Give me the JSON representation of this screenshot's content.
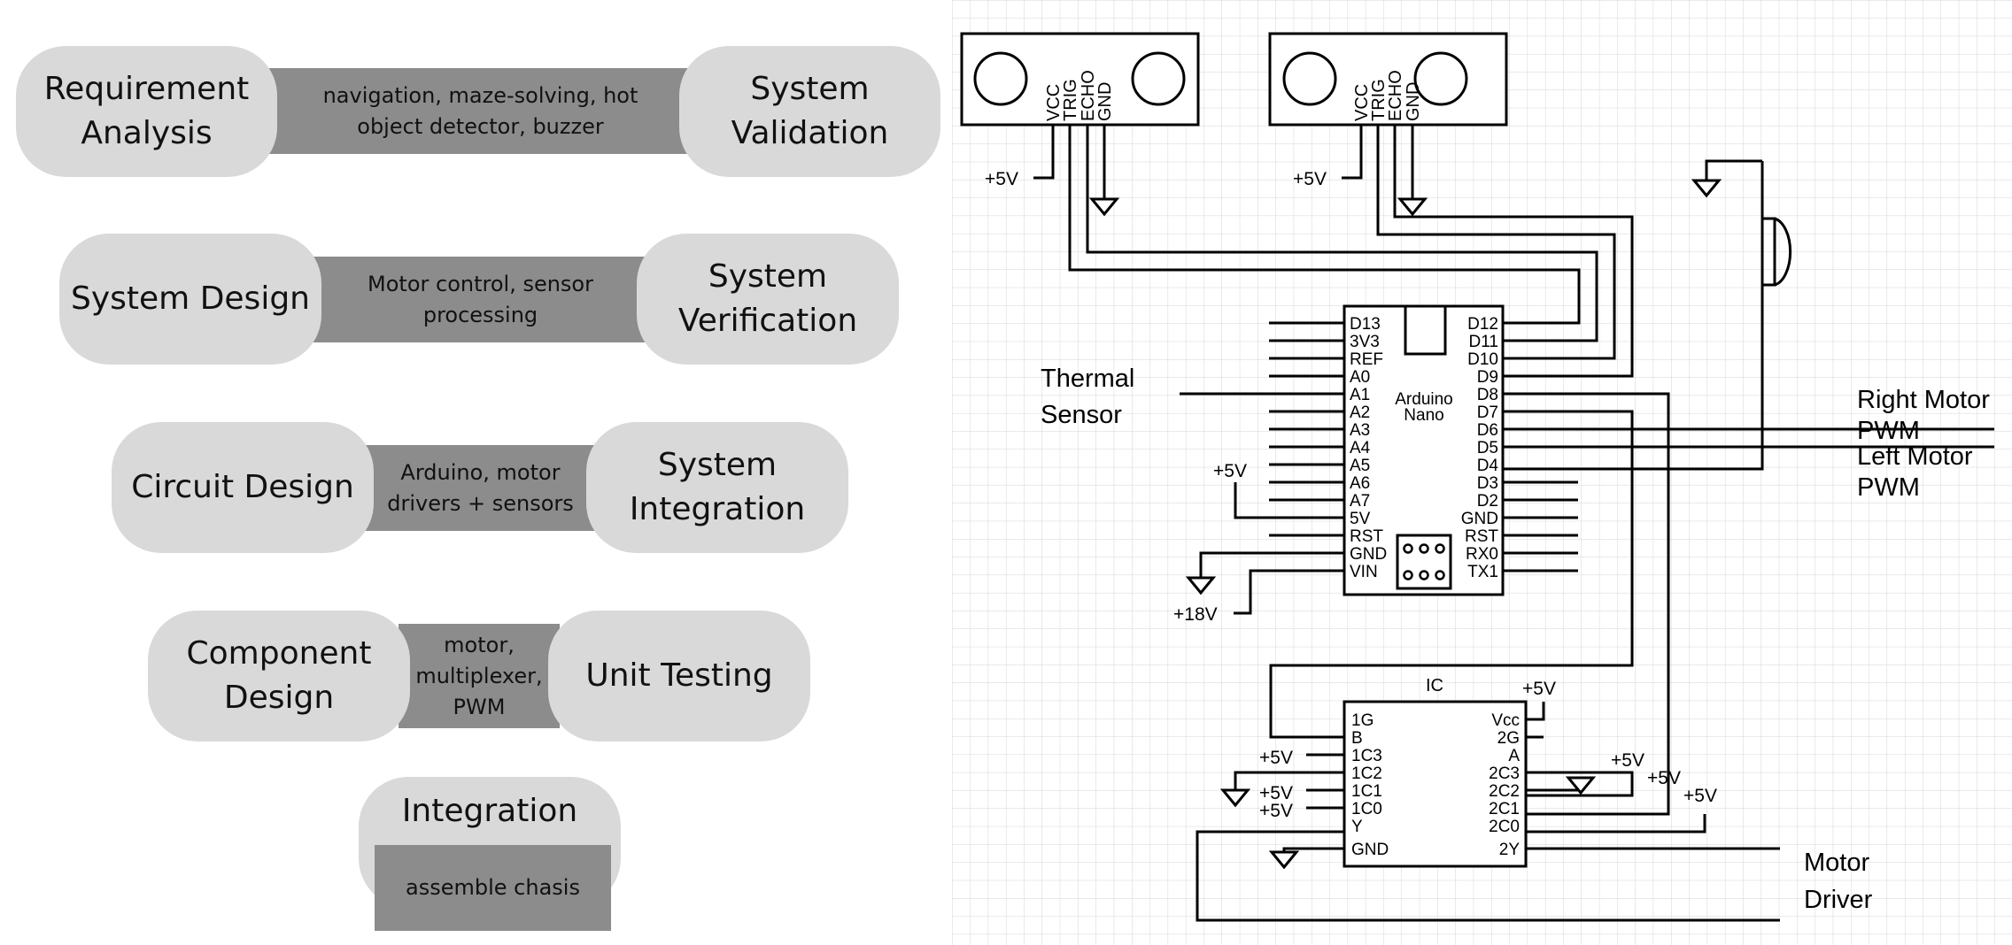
{
  "vmodel": {
    "rows": [
      {
        "left": "Requirement\nAnalysis",
        "middle": "navigation, maze-solving, hot\nobject detector, buzzer",
        "right": "System\nValidation"
      },
      {
        "left": "System Design",
        "middle": "Motor control, sensor\nprocessing",
        "right": "System\nVerification"
      },
      {
        "left": "Circuit Design",
        "middle": "Arduino, motor\ndrivers + sensors",
        "right": "System\nIntegration"
      },
      {
        "left": "Component\nDesign",
        "middle": "motor,\nmultiplexer,\nPWM",
        "right": "Unit Testing"
      }
    ],
    "bottom": {
      "title": "Integration",
      "middle": "assemble chasis"
    }
  },
  "schematic": {
    "ultrasonic_pins": [
      "VCC",
      "TRIG",
      "ECHO",
      "GND"
    ],
    "arduino": {
      "name_line1": "Arduino",
      "name_line2": "Nano",
      "left_pins": [
        "D13",
        "3V3",
        "REF",
        "A0",
        "A1",
        "A2",
        "A3",
        "A4",
        "A5",
        "A6",
        "A7",
        "5V",
        "RST",
        "GND",
        "VIN"
      ],
      "right_pins": [
        "D12",
        "D11",
        "D10",
        "D9",
        "D8",
        "D7",
        "D6",
        "D5",
        "D4",
        "D3",
        "D2",
        "GND",
        "RST",
        "RX0",
        "TX1"
      ]
    },
    "ic": {
      "title": "IC",
      "left_pins": [
        "1G",
        "B",
        "1C3",
        "1C2",
        "1C1",
        "1C0",
        "Y",
        "GND"
      ],
      "right_pins": [
        "Vcc",
        "2G",
        "A",
        "2C3",
        "2C2",
        "2C1",
        "2C0",
        "2Y"
      ]
    },
    "labels": {
      "thermal_line1": "Thermal",
      "thermal_line2": "Sensor",
      "right_motor_line1": "Right Motor",
      "right_motor_line2": "PWM",
      "left_motor_line1": "Left Motor",
      "left_motor_line2": "PWM",
      "motor_driver_line1": "Motor",
      "motor_driver_line2": "Driver",
      "plus5v": "+5V",
      "plus18v": "+18V"
    }
  }
}
